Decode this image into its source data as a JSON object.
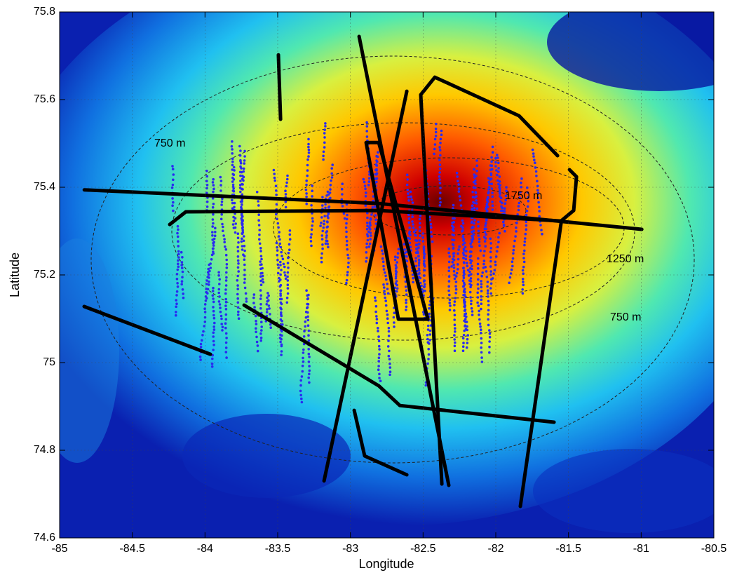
{
  "chart_data": {
    "type": "map",
    "xlabel": "Longitude",
    "ylabel": "Latitude",
    "xlim": [
      -85,
      -80.5
    ],
    "ylim": [
      74.6,
      75.8
    ],
    "xticks": [
      -85,
      -84.5,
      -84,
      -83.5,
      -83,
      -82.5,
      -82,
      -81.5,
      -81,
      -80.5
    ],
    "yticks": [
      74.6,
      74.8,
      75,
      75.2,
      75.4,
      75.6,
      75.8
    ],
    "grid": true,
    "annotations": [
      "750 m",
      "1750 m",
      "1250 m",
      "750 m"
    ],
    "track_color": "#000000",
    "tracks": [
      {
        "x": [
          -84.83,
          -82.805,
          -80.996
        ],
        "y": [
          75.394,
          75.363,
          75.304
        ]
      },
      {
        "x": [
          -84.243,
          -84.132,
          -82.805,
          -81.551,
          -81.464,
          -81.445,
          -81.493
        ],
        "y": [
          75.315,
          75.344,
          75.347,
          75.323,
          75.347,
          75.424,
          75.44
        ]
      },
      {
        "x": [
          -82.94,
          -82.323
        ],
        "y": [
          75.744,
          74.72
        ]
      },
      {
        "x": [
          -82.612,
          -83.181
        ],
        "y": [
          75.619,
          74.73
        ]
      },
      {
        "x": [
          -81.551,
          -81.831
        ],
        "y": [
          75.318,
          74.672
        ]
      },
      {
        "x": [
          -82.371,
          -82.516,
          -82.419,
          -81.84,
          -81.575
        ],
        "y": [
          74.723,
          75.611,
          75.651,
          75.563,
          75.472
        ]
      },
      {
        "x": [
          -84.831,
          -83.963
        ],
        "y": [
          75.128,
          75.019
        ]
      },
      {
        "x": [
          -83.731,
          -82.805,
          -82.66,
          -81.599
        ],
        "y": [
          75.131,
          74.947,
          74.902,
          74.864
        ]
      },
      {
        "x": [
          -82.974,
          -82.902,
          -82.612
        ],
        "y": [
          74.891,
          74.787,
          74.744
        ]
      },
      {
        "x": [
          -83.495,
          -83.48
        ],
        "y": [
          75.702,
          75.555
        ]
      },
      {
        "x": [
          -82.892,
          -82.805,
          -82.467,
          -82.67,
          -82.892
        ],
        "y": [
          75.502,
          75.502,
          75.099,
          75.099,
          75.502
        ]
      }
    ]
  }
}
